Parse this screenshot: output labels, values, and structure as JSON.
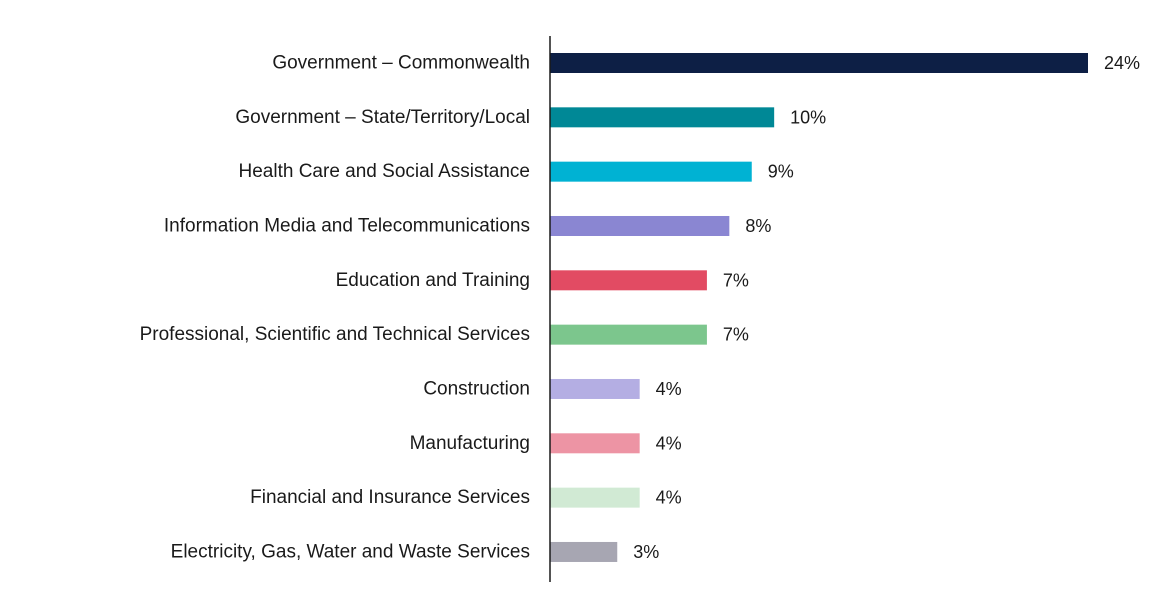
{
  "chart_data": {
    "type": "bar",
    "orientation": "horizontal",
    "title": "",
    "xlabel": "",
    "ylabel": "",
    "unit": "%",
    "grid": false,
    "legend": "none",
    "xlim": [
      0,
      24
    ],
    "categories": [
      "Government – Commonwealth",
      "Government – State/Territory/Local",
      "Health Care and Social Assistance",
      "Information Media and Telecommunications",
      "Education and Training",
      "Professional, Scientific and Technical Services",
      "Construction",
      "Manufacturing",
      "Financial and Insurance Services",
      "Electricity, Gas, Water and Waste Services"
    ],
    "values": [
      24,
      10,
      9,
      8,
      7,
      7,
      4,
      4,
      4,
      3
    ],
    "value_labels": [
      "24%",
      "10%",
      "9%",
      "8%",
      "7%",
      "7%",
      "4%",
      "4%",
      "4%",
      "3%"
    ],
    "colors": [
      "#0d1f45",
      "#008896",
      "#00b2d3",
      "#8a86d2",
      "#e24b63",
      "#7cc68d",
      "#b4aee3",
      "#ed94a4",
      "#d1ead4",
      "#a7a6b2"
    ]
  }
}
